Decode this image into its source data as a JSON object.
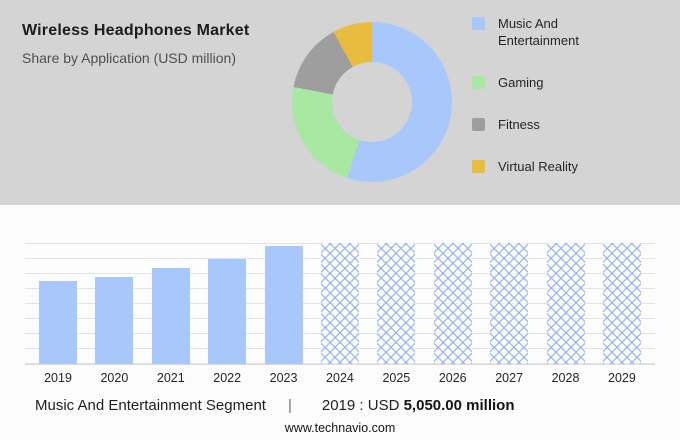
{
  "header": {
    "title": "Wireless Headphones Market",
    "subtitle": "Share by Application (USD million)"
  },
  "colors": {
    "panel_gray": "#d4d4d4",
    "bar_blue": "#a8c7fa"
  },
  "legend": [
    {
      "id": "music-and-entertainment",
      "label": "Music And Entertainment",
      "color": "#a8c7fa"
    },
    {
      "id": "gaming",
      "label": "Gaming",
      "color": "#a9e8a2"
    },
    {
      "id": "fitness",
      "label": "Fitness",
      "color": "#9e9e9e"
    },
    {
      "id": "virtual-reality",
      "label": "Virtual Reality",
      "color": "#e8bd3f"
    }
  ],
  "chart_data": [
    {
      "type": "pie",
      "title": "Wireless Headphones Market - Share by Application (USD million)",
      "labels": [
        "Music And Entertainment",
        "Gaming",
        "Fitness",
        "Virtual Reality"
      ],
      "values": [
        55,
        23,
        14,
        8
      ],
      "colors": [
        "#a8c7fa",
        "#a9e8a2",
        "#9e9e9e",
        "#e8bd3f"
      ],
      "donut": true,
      "legend_position": "right"
    },
    {
      "type": "bar",
      "title": "Music And Entertainment Segment (USD million)",
      "categories": [
        "2019",
        "2020",
        "2021",
        "2022",
        "2023",
        "2024",
        "2025",
        "2026",
        "2027",
        "2028",
        "2029"
      ],
      "values": [
        5050,
        5300,
        5900,
        6400,
        7200,
        null,
        null,
        null,
        null,
        null,
        null
      ],
      "forecast_categories": [
        "2024",
        "2025",
        "2026",
        "2027",
        "2028",
        "2029"
      ],
      "ylim": [
        0,
        7400
      ],
      "grid": true,
      "xlabel": "",
      "ylabel": "",
      "bar_color": "#a8c7fa"
    }
  ],
  "footer": {
    "segment_label": "Music And Entertainment Segment",
    "separator": "|",
    "stat_prefix": "2019 : USD ",
    "stat_bold": "5,050.00 million",
    "website": "www.technavio.com"
  }
}
